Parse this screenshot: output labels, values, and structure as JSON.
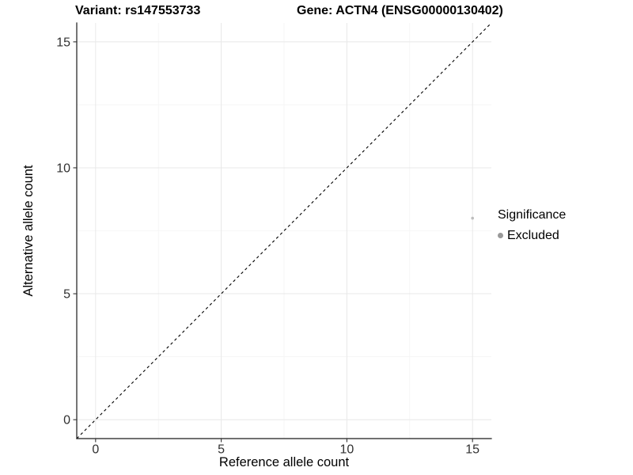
{
  "chart_data": {
    "type": "scatter",
    "title_left": "Variant: rs147553733",
    "title_right": "Gene: ACTN4 (ENSG00000130402)",
    "xlabel": "Reference allele count",
    "ylabel": "Alternative allele count",
    "xlim": [
      -0.75,
      15.75
    ],
    "ylim": [
      -0.75,
      15.75
    ],
    "x_ticks": [
      0,
      5,
      10,
      15
    ],
    "y_ticks": [
      0,
      5,
      10,
      15
    ],
    "x_minor_ticks": [
      2.5,
      7.5,
      12.5
    ],
    "y_minor_ticks": [
      2.5,
      7.5,
      12.5
    ],
    "grid": true,
    "series": [
      {
        "name": "Excluded",
        "points": [
          {
            "x": 15,
            "y": 8
          }
        ],
        "color": "#bdbdbd",
        "marker_radius": 1.8
      }
    ],
    "reference_line": {
      "type": "identity",
      "equation": "y = x",
      "style": "dashed",
      "color": "#000000"
    },
    "legend": {
      "position": "right",
      "title": "Significance",
      "entries": [
        {
          "label": "Excluded",
          "color": "#999999"
        }
      ]
    },
    "colors": {
      "axis_line": "#1a1a1a",
      "tick_mark": "#333333",
      "tick_label": "#303030",
      "grid_major": "#e8e8e8",
      "grid_minor": "#f4f4f4",
      "background": "#ffffff"
    }
  }
}
